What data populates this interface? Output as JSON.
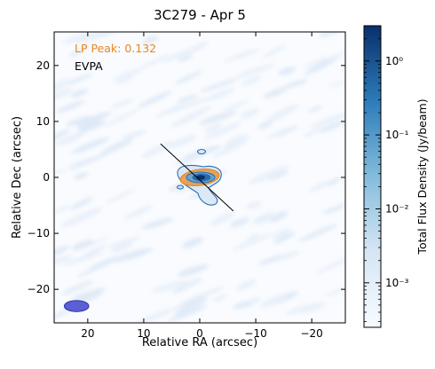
{
  "chart_data": {
    "type": "heatmap",
    "title": "3C279 - Apr 5",
    "xlabel": "Relative RA (arcsec)",
    "ylabel": "Relative Dec (arcsec)",
    "xlim": [
      26,
      -26
    ],
    "ylim": [
      -26,
      26
    ],
    "x_ticks": [
      20,
      10,
      0,
      -10,
      -20
    ],
    "x_tick_labels": [
      "20",
      "10",
      "0",
      "−10",
      "−20"
    ],
    "y_ticks": [
      20,
      10,
      0,
      -10,
      -20
    ],
    "y_tick_labels": [
      "20",
      "10",
      "0",
      "−10",
      "−20"
    ],
    "annotations": {
      "lp_peak": "LP Peak: 0.132",
      "evpa": "EVPA"
    },
    "colorbar": {
      "label": "Total Flux Density (Jy/beam)",
      "scale": "log",
      "range": [
        0.00025,
        3
      ],
      "ticks": [
        0.001,
        0.01,
        0.1,
        1
      ],
      "tick_labels": [
        "10⁻³",
        "10⁻²",
        "10⁻¹",
        "10⁰"
      ],
      "colormap": "Blues"
    },
    "colors": {
      "lp_contour": "#e8871e",
      "total_contour": "#2a6fb5",
      "evpa_line": "#000000",
      "beam": "#5a5fd6",
      "lp_label": "#e8871e"
    },
    "evpa_line": {
      "from": [
        7,
        6
      ],
      "to": [
        -6,
        -6
      ]
    },
    "beam": {
      "x": 22,
      "y": -23,
      "major": 2.2,
      "minor": 1.0,
      "pa_deg": 0
    },
    "source_peak": {
      "x": 0,
      "y": 0
    }
  }
}
